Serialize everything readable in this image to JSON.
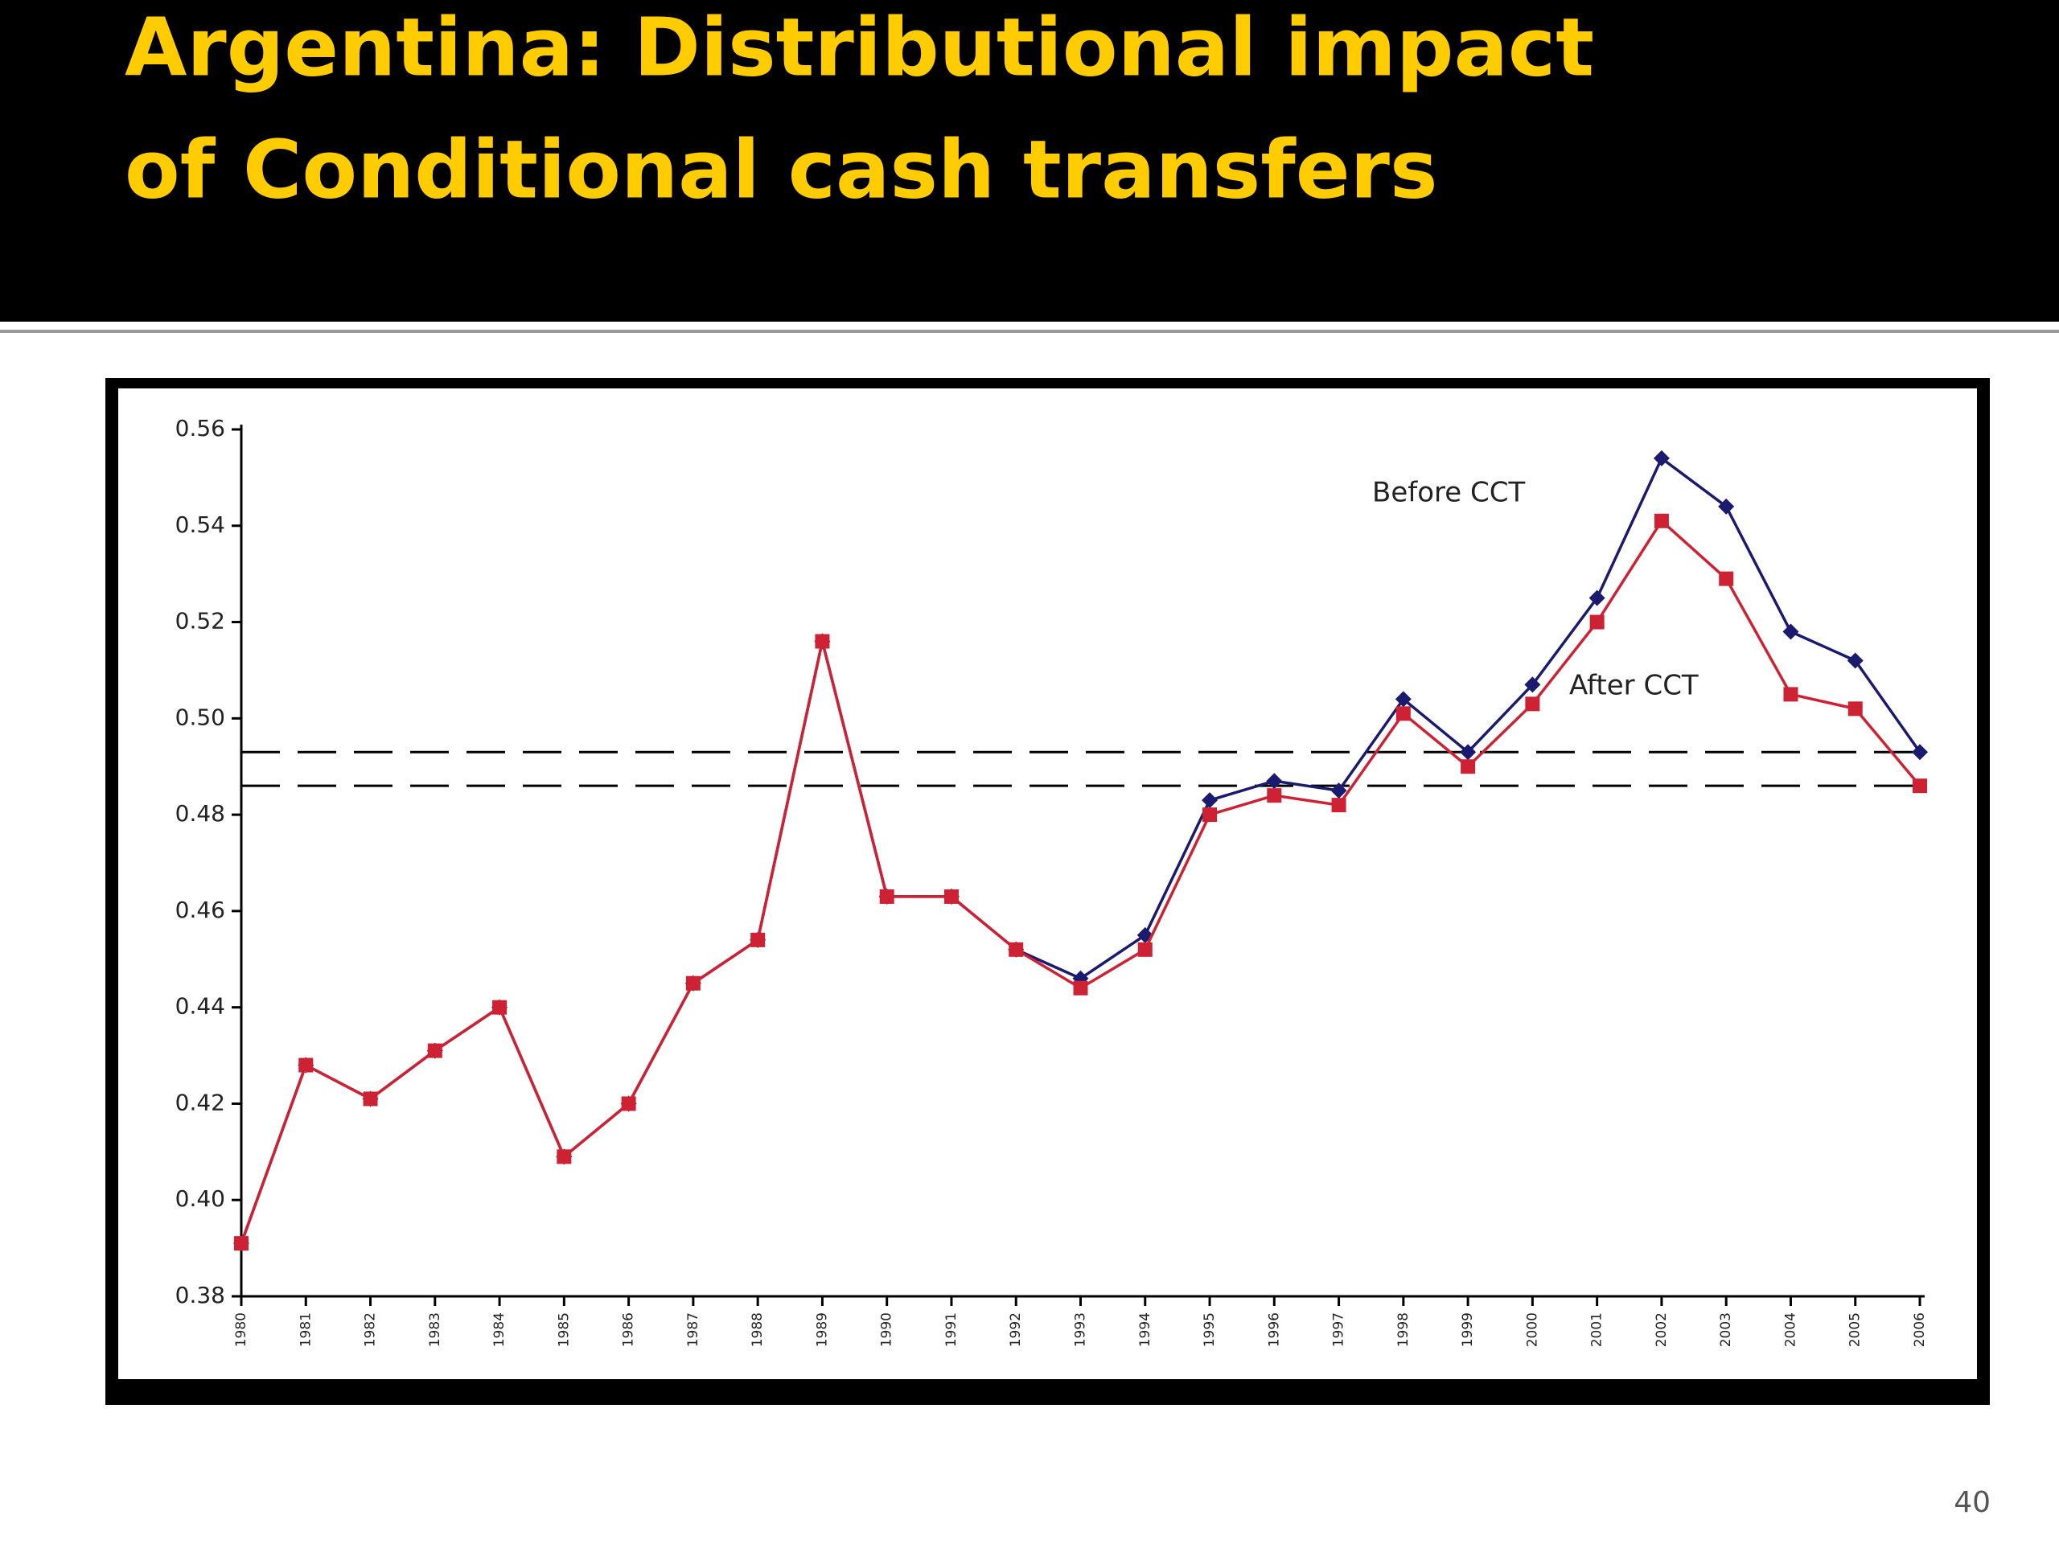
{
  "page_number": "40",
  "chart_data": {
    "type": "line",
    "title": [
      "Argentina: Distributional impact",
      "of Conditional cash transfers"
    ],
    "categories": [
      "1980",
      "1981",
      "1982",
      "1983",
      "1984",
      "1985",
      "1986",
      "1987",
      "1988",
      "1989",
      "1990",
      "1991",
      "1992",
      "1993",
      "1994",
      "1995",
      "1996",
      "1997",
      "1998",
      "1999",
      "2000",
      "2001",
      "2002",
      "2003",
      "2004",
      "2005",
      "2006"
    ],
    "series": [
      {
        "name": "Before CCT",
        "color": "#1a1a6e",
        "marker": "diamond",
        "values": [
          0.391,
          0.428,
          0.421,
          0.431,
          0.44,
          0.409,
          0.42,
          0.445,
          0.454,
          0.516,
          0.463,
          0.463,
          0.452,
          0.446,
          0.455,
          0.483,
          0.487,
          0.485,
          0.504,
          0.493,
          0.507,
          0.525,
          0.554,
          0.544,
          0.518,
          0.512,
          0.493
        ]
      },
      {
        "name": "After CCT",
        "color": "#cc2233",
        "marker": "square",
        "values": [
          0.391,
          0.428,
          0.421,
          0.431,
          0.44,
          0.409,
          0.42,
          0.445,
          0.454,
          0.516,
          0.463,
          0.463,
          0.452,
          0.444,
          0.452,
          0.48,
          0.484,
          0.482,
          0.501,
          0.49,
          0.503,
          0.52,
          0.541,
          0.529,
          0.505,
          0.502,
          0.486
        ]
      }
    ],
    "reference_lines": [
      0.493,
      0.486
    ],
    "ylim": [
      0.38,
      0.56
    ],
    "yticks": [
      0.38,
      {
        "value": 0.4,
        "label": "0.40"
      },
      0.42,
      0.44,
      0.46,
      0.48,
      {
        "value": 0.5,
        "label": "0.50"
      },
      0.52,
      0.54,
      0.56
    ],
    "annotations": [
      {
        "text": "Before CCT",
        "series": 0
      },
      {
        "text": "After CCT",
        "series": 1
      }
    ]
  }
}
